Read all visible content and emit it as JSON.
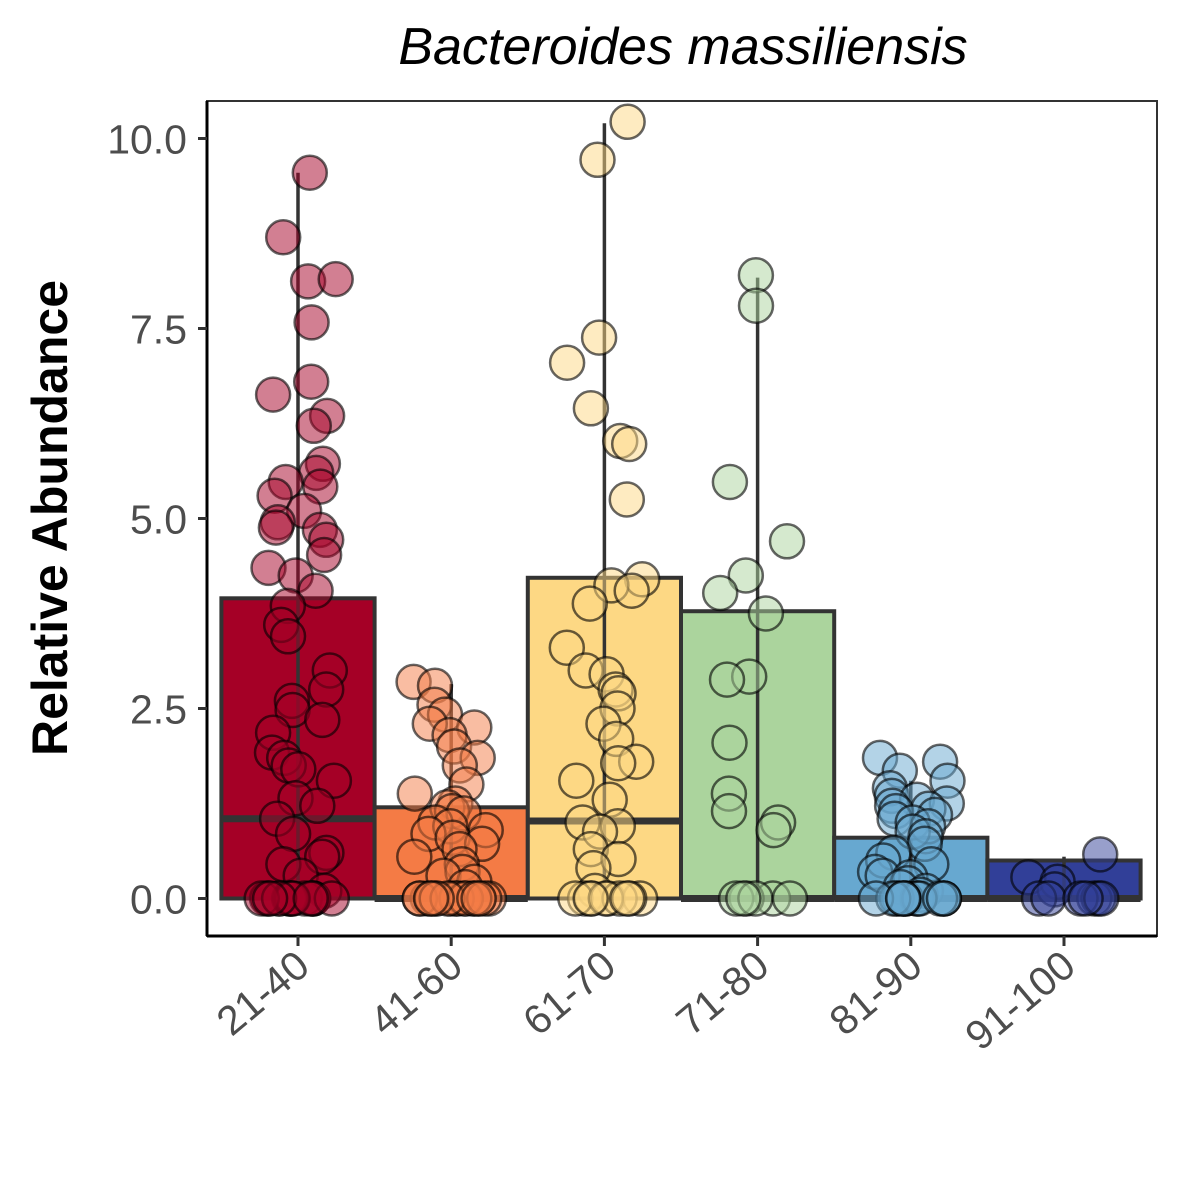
{
  "chart_data": {
    "type": "bar",
    "title": "Bacteroides massiliensis",
    "ylabel": "Relative Abundance",
    "xlabel": "",
    "ylim": [
      -0.45,
      10.5
    ],
    "yticks": [
      "0.0",
      "2.5",
      "5.0",
      "7.5",
      "10.0"
    ],
    "ytick_values": [
      0,
      2.5,
      5,
      7.5,
      10
    ],
    "grid": false,
    "legend": "none",
    "categories": [
      "21-40",
      "41-60",
      "61-70",
      "71-80",
      "81-90",
      "91-100"
    ],
    "colors": [
      "#a50026",
      "#f47b45",
      "#fdd884",
      "#abd49d",
      "#67a8d0",
      "#313f98"
    ],
    "values": [
      3.95,
      1.2,
      4.22,
      3.78,
      0.8,
      0.5
    ],
    "medians": [
      1.05,
      0.0,
      1.02,
      0.0,
      0.0,
      0.0
    ],
    "whisker_max": [
      9.55,
      2.82,
      10.2,
      8.17,
      1.55,
      0.55
    ],
    "points": [
      [
        9.55,
        8.7,
        8.12,
        8.15,
        7.58,
        6.8,
        6.63,
        6.35,
        6.22,
        5.72,
        5.6,
        5.48,
        5.42,
        5.3,
        5.1,
        4.95,
        4.88,
        4.85,
        4.72,
        4.52,
        4.35,
        4.25,
        4.05,
        3.85,
        3.6,
        3.45,
        3.0,
        2.75,
        2.6,
        2.48,
        2.35,
        2.18,
        1.92,
        1.85,
        1.75,
        1.7,
        1.55,
        1.32,
        1.22,
        1.05,
        0.85,
        0.6,
        0.55,
        0.45,
        0.3,
        0.1,
        0,
        0,
        0,
        0,
        0,
        0,
        0,
        0,
        0,
        0,
        0,
        0,
        0,
        0,
        0,
        0,
        0
      ],
      [
        2.85,
        2.8,
        2.55,
        2.42,
        2.3,
        2.25,
        2.15,
        2.0,
        1.85,
        1.75,
        1.5,
        1.38,
        1.25,
        1.2,
        1.15,
        1.12,
        1.0,
        0.95,
        0.9,
        0.85,
        0.8,
        0.72,
        0.65,
        0.55,
        0.45,
        0.35,
        0.3,
        0.22,
        0.15,
        0,
        0,
        0,
        0,
        0,
        0,
        0,
        0,
        0,
        0,
        0,
        0,
        0,
        0,
        0,
        0,
        0,
        0,
        0
      ],
      [
        10.22,
        9.72,
        7.38,
        7.05,
        6.45,
        6.02,
        5.98,
        5.25,
        4.2,
        4.12,
        4.05,
        3.88,
        3.3,
        3.0,
        2.95,
        2.75,
        2.7,
        2.5,
        2.3,
        2.1,
        1.8,
        1.78,
        1.55,
        1.3,
        1.0,
        0.95,
        0.88,
        0.65,
        0.52,
        0.4,
        0.1,
        0,
        0,
        0,
        0,
        0,
        0,
        0,
        0,
        0,
        0
      ],
      [
        8.2,
        7.8,
        5.48,
        4.7,
        4.25,
        4.02,
        3.75,
        2.92,
        2.88,
        2.05,
        1.38,
        1.15,
        1.0,
        0.9,
        0,
        0,
        0,
        0,
        0,
        0
      ],
      [
        1.85,
        1.8,
        1.68,
        1.55,
        1.45,
        1.35,
        1.3,
        1.25,
        1.22,
        1.18,
        1.15,
        1.1,
        1.05,
        1.0,
        0.95,
        0.88,
        0.82,
        0.72,
        0.6,
        0.5,
        0.45,
        0.35,
        0.3,
        0.28,
        0.2,
        0.15,
        0.1,
        0.05,
        0,
        0,
        0,
        0,
        0,
        0,
        0,
        0,
        0,
        0,
        0,
        0,
        0,
        0,
        0,
        0
      ],
      [
        0.58,
        0.28,
        0.22,
        0.12,
        0,
        0,
        0,
        0,
        0,
        0,
        0
      ]
    ]
  }
}
